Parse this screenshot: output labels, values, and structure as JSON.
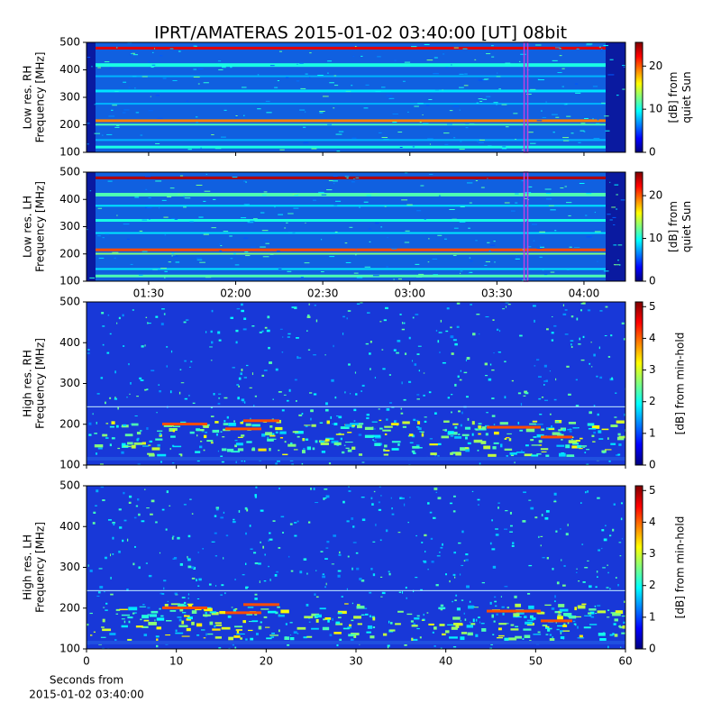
{
  "title": "IPRT/AMATERAS 2015-01-02 03:40:00 [UT]   08bit",
  "chart_data": [
    {
      "type": "heatmap",
      "ylabel": [
        "Low res. RH",
        "Frequency [MHz]"
      ],
      "ylim": [
        100,
        500
      ],
      "yticks": [
        100,
        200,
        300,
        400,
        500
      ],
      "xlim": [
        68.6,
        254.3
      ],
      "markers": [
        220
      ],
      "colorbar": {
        "label": [
          "[dB] from",
          "quiet Sun"
        ],
        "lim": [
          0,
          25.5
        ],
        "ticks": [
          0,
          10,
          20
        ]
      }
    },
    {
      "type": "heatmap",
      "ylabel": [
        "Low res. LH",
        "Frequency [MHz]"
      ],
      "ylim": [
        100,
        500
      ],
      "yticks": [
        100,
        200,
        300,
        400,
        500
      ],
      "xlim": [
        68.6,
        254.3
      ],
      "markers": [
        220
      ],
      "xticks": [
        {
          "value": 90,
          "label": "01:30"
        },
        {
          "value": 120,
          "label": "02:00"
        },
        {
          "value": 150,
          "label": "02:30"
        },
        {
          "value": 180,
          "label": "03:00"
        },
        {
          "value": 210,
          "label": "03:30"
        },
        {
          "value": 240,
          "label": "04:00"
        }
      ],
      "colorbar": {
        "label": [
          "[dB] from",
          "quiet Sun"
        ],
        "lim": [
          0,
          25.5
        ],
        "ticks": [
          0,
          10,
          20
        ]
      }
    },
    {
      "type": "heatmap",
      "ylabel": [
        "High res. RH",
        "Frequency [MHz]"
      ],
      "ylim": [
        100,
        500
      ],
      "yticks": [
        100,
        200,
        300,
        400,
        500
      ],
      "xlim": [
        0,
        60
      ],
      "colorbar": {
        "label": [
          "[dB] from min-hold"
        ],
        "lim": [
          0,
          5.15
        ],
        "ticks": [
          0,
          1,
          2,
          3,
          4,
          5
        ]
      }
    },
    {
      "type": "heatmap",
      "ylabel": [
        "High res. LH",
        "Frequency [MHz]"
      ],
      "ylim": [
        100,
        500
      ],
      "yticks": [
        100,
        200,
        300,
        400,
        500
      ],
      "xlim": [
        0,
        60
      ],
      "xticks": [
        0,
        10,
        20,
        30,
        40,
        50,
        60
      ],
      "xlabel": [
        "Seconds from",
        "2015-01-02 03:40:00"
      ],
      "colorbar": {
        "label": [
          "[dB] from min-hold"
        ],
        "lim": [
          0,
          5.15
        ],
        "ticks": [
          0,
          1,
          2,
          3,
          4,
          5
        ]
      }
    }
  ]
}
